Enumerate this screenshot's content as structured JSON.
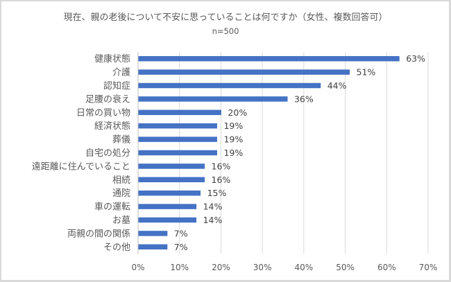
{
  "chart_data": {
    "type": "bar",
    "orientation": "horizontal",
    "title": "現在、親の老後について不安に思っていることは何ですか（女性、複数回答可）",
    "subtitle": "n=500",
    "categories": [
      "健康状態",
      "介護",
      "認知症",
      "足腰の衰え",
      "日常の買い物",
      "経済状態",
      "葬儀",
      "自宅の処分",
      "遠距離に住んでいること",
      "相続",
      "通院",
      "車の運転",
      "お墓",
      "両親の間の関係",
      "その他"
    ],
    "values": [
      63,
      51,
      44,
      36,
      20,
      19,
      19,
      19,
      16,
      16,
      15,
      14,
      14,
      7,
      7
    ],
    "value_labels": [
      "63%",
      "51%",
      "44%",
      "36%",
      "20%",
      "19%",
      "19%",
      "19%",
      "16%",
      "16%",
      "15%",
      "14%",
      "14%",
      "7%",
      "7%"
    ],
    "xlim": [
      0,
      70
    ],
    "x_ticks": [
      "0%",
      "10%",
      "20%",
      "30%",
      "40%",
      "50%",
      "60%",
      "70%"
    ],
    "grid": true,
    "bar_color": "#4472c4",
    "xlabel": "",
    "ylabel": ""
  }
}
